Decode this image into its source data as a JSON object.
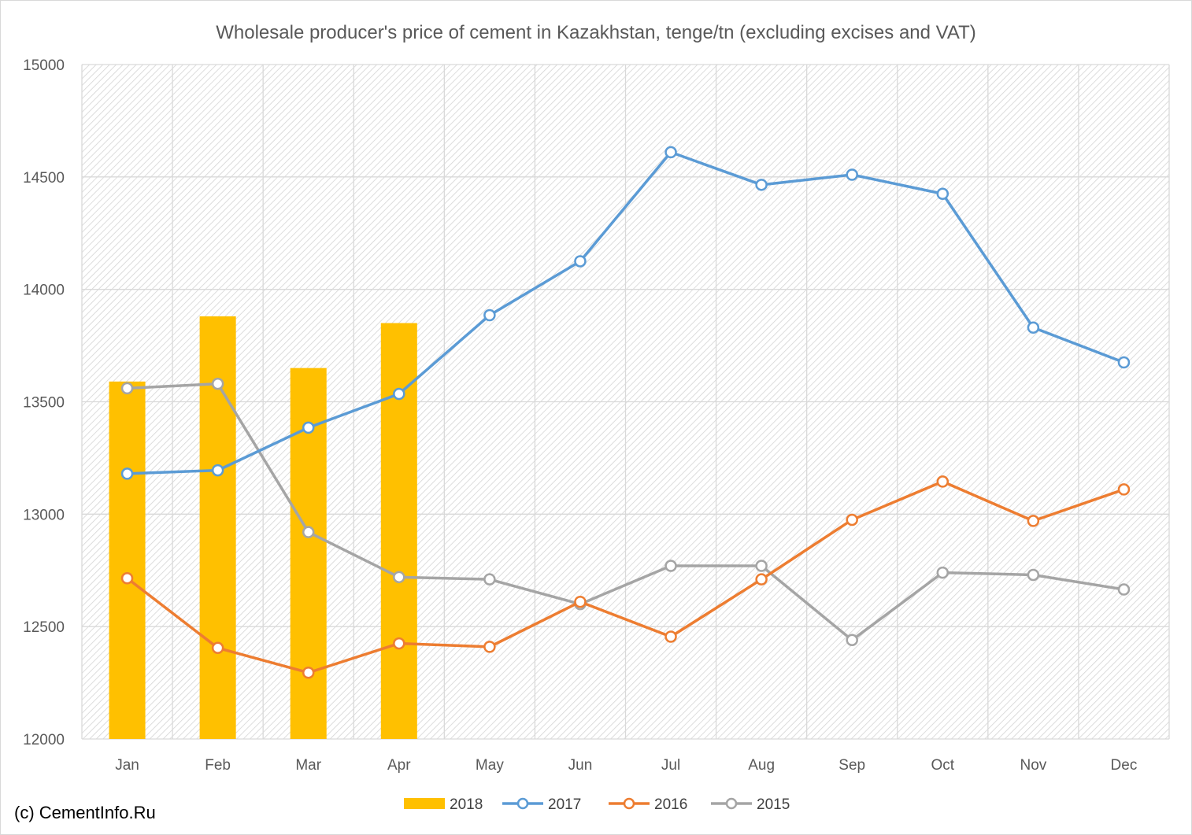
{
  "chart_data": {
    "type": "bar+line",
    "title": "Wholesale producer's price of cement in Kazakhstan, tenge/tn (excluding excises and VAT)",
    "categories": [
      "Jan",
      "Feb",
      "Mar",
      "Apr",
      "May",
      "Jun",
      "Jul",
      "Aug",
      "Sep",
      "Oct",
      "Nov",
      "Dec"
    ],
    "ylim": [
      12000,
      15000
    ],
    "yticks": [
      12000,
      12500,
      13000,
      13500,
      14000,
      14500,
      15000
    ],
    "grid": true,
    "legend_position": "bottom",
    "series": [
      {
        "name": "2018",
        "kind": "bar",
        "color": "#ffc000",
        "values": [
          13590,
          13880,
          13650,
          13850,
          null,
          null,
          null,
          null,
          null,
          null,
          null,
          null
        ]
      },
      {
        "name": "2017",
        "kind": "line",
        "color": "#5b9bd5",
        "values": [
          13180,
          13195,
          13385,
          13535,
          13885,
          14125,
          14610,
          14465,
          14510,
          14425,
          13830,
          13675
        ]
      },
      {
        "name": "2016",
        "kind": "line",
        "color": "#ed7d31",
        "values": [
          12715,
          12405,
          12295,
          12425,
          12410,
          12610,
          12455,
          12710,
          12975,
          13145,
          12970,
          13110
        ]
      },
      {
        "name": "2015",
        "kind": "line",
        "color": "#a5a5a5",
        "values": [
          13560,
          13580,
          12920,
          12720,
          12710,
          12600,
          12770,
          12770,
          12440,
          12740,
          12730,
          12665
        ]
      }
    ]
  },
  "footer": {
    "copyright": "(c) CementInfo.Ru"
  }
}
